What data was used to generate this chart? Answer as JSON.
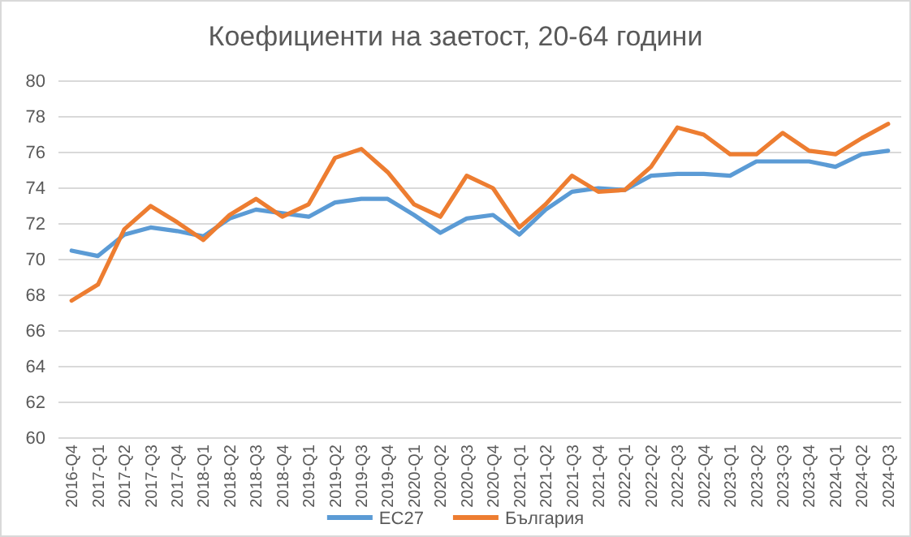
{
  "chart_data": {
    "type": "line",
    "title": "Коефициенти на заетост, 20-64 години",
    "categories": [
      "2016-Q4",
      "2017-Q1",
      "2017-Q2",
      "2017-Q3",
      "2017-Q4",
      "2018-Q1",
      "2018-Q2",
      "2018-Q3",
      "2018-Q4",
      "2019-Q1",
      "2019-Q2",
      "2019-Q3",
      "2019-Q4",
      "2020-Q1",
      "2020-Q2",
      "2020-Q3",
      "2020-Q4",
      "2021-Q1",
      "2021-Q2",
      "2021-Q3",
      "2021-Q4",
      "2022-Q1",
      "2022-Q2",
      "2022-Q3",
      "2022-Q4",
      "2023-Q1",
      "2023-Q2",
      "2023-Q3",
      "2023-Q4",
      "2024-Q1",
      "2024-Q2",
      "2024-Q3"
    ],
    "series": [
      {
        "name": "ЕС27",
        "color": "#5b9bd5",
        "values": [
          70.5,
          70.2,
          71.4,
          71.8,
          71.6,
          71.3,
          72.3,
          72.8,
          72.6,
          72.4,
          73.2,
          73.4,
          73.4,
          72.5,
          71.5,
          72.3,
          72.5,
          71.4,
          72.8,
          73.8,
          74.0,
          73.9,
          74.7,
          74.8,
          74.8,
          74.7,
          75.5,
          75.5,
          75.5,
          75.2,
          75.9,
          76.1
        ]
      },
      {
        "name": "България",
        "color": "#ed7d31",
        "values": [
          67.7,
          68.6,
          71.7,
          73.0,
          72.1,
          71.1,
          72.5,
          73.4,
          72.4,
          73.1,
          75.7,
          76.2,
          74.9,
          73.1,
          72.4,
          74.7,
          74.0,
          71.8,
          73.1,
          74.7,
          73.8,
          73.9,
          75.2,
          77.4,
          77.0,
          75.9,
          75.9,
          77.1,
          76.1,
          75.9,
          76.8,
          77.6
        ]
      }
    ],
    "ylim": [
      60,
      80
    ],
    "yticks": [
      60,
      62,
      64,
      66,
      68,
      70,
      72,
      74,
      76,
      78,
      80
    ],
    "grid": "y",
    "legend": "bottom",
    "marker": "none",
    "line_style": "solid"
  }
}
